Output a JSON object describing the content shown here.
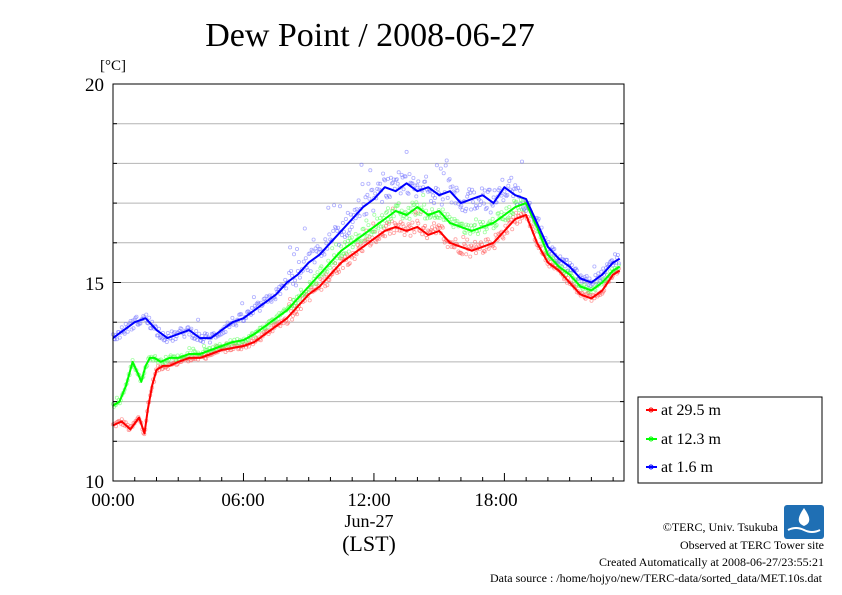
{
  "chart_data": {
    "type": "line",
    "title": "Dew Point / 2008-06-27",
    "ylabel_unit": "[°C]",
    "xlabel": "(LST)",
    "date_label": "Jun-27",
    "x_ticks": [
      "00:00",
      "06:00",
      "12:00",
      "18:00"
    ],
    "y_ticks": [
      "10",
      "15",
      "20"
    ],
    "ylim": [
      10,
      20
    ],
    "xlim_hours": [
      0,
      23.5
    ],
    "grid": "horizontal, every 1 °C",
    "legend_position": "right-bottom",
    "series": [
      {
        "name": "at 29.5 m",
        "color": "#ff0000",
        "x": [
          0,
          0.4,
          0.8,
          1.2,
          1.45,
          1.6,
          1.8,
          2.0,
          2.3,
          2.6,
          3.0,
          3.5,
          4.0,
          4.5,
          5.0,
          5.5,
          6.0,
          6.5,
          7.0,
          7.5,
          8.0,
          8.5,
          9.0,
          9.5,
          10.0,
          10.5,
          11.0,
          11.5,
          12.0,
          12.5,
          13.0,
          13.5,
          14.0,
          14.5,
          15.0,
          15.5,
          16.0,
          16.5,
          17.0,
          17.5,
          18.0,
          18.5,
          19.0,
          19.5,
          20.0,
          20.5,
          21.0,
          21.5,
          22.0,
          22.5,
          23.0,
          23.3
        ],
        "y": [
          11.4,
          11.5,
          11.3,
          11.6,
          11.2,
          11.8,
          12.4,
          12.8,
          12.9,
          12.9,
          13.0,
          13.1,
          13.1,
          13.2,
          13.3,
          13.35,
          13.4,
          13.5,
          13.7,
          13.9,
          14.1,
          14.4,
          14.7,
          14.9,
          15.2,
          15.5,
          15.7,
          15.9,
          16.1,
          16.3,
          16.4,
          16.3,
          16.4,
          16.2,
          16.3,
          16.0,
          15.9,
          15.8,
          15.9,
          16.0,
          16.3,
          16.6,
          16.7,
          16.0,
          15.5,
          15.3,
          15.0,
          14.7,
          14.6,
          14.8,
          15.2,
          15.3
        ]
      },
      {
        "name": "at 12.3 m",
        "color": "#00ff00",
        "x": [
          0,
          0.3,
          0.6,
          0.9,
          1.15,
          1.3,
          1.5,
          1.7,
          1.9,
          2.2,
          2.6,
          3.0,
          3.5,
          4.0,
          4.5,
          5.0,
          5.5,
          6.0,
          6.5,
          7.0,
          7.5,
          8.0,
          8.5,
          9.0,
          9.5,
          10.0,
          10.5,
          11.0,
          11.5,
          12.0,
          12.5,
          13.0,
          13.5,
          14.0,
          14.5,
          15.0,
          15.5,
          16.0,
          16.5,
          17.0,
          17.5,
          18.0,
          18.5,
          19.0,
          19.5,
          20.0,
          20.5,
          21.0,
          21.5,
          22.0,
          22.5,
          23.0,
          23.3
        ],
        "y": [
          11.9,
          12.0,
          12.4,
          13.0,
          12.7,
          12.5,
          12.9,
          13.1,
          13.1,
          13.0,
          13.1,
          13.1,
          13.2,
          13.2,
          13.3,
          13.4,
          13.5,
          13.55,
          13.7,
          13.9,
          14.1,
          14.3,
          14.6,
          14.9,
          15.2,
          15.5,
          15.8,
          16.0,
          16.2,
          16.4,
          16.6,
          16.8,
          16.7,
          16.9,
          16.7,
          16.8,
          16.5,
          16.4,
          16.3,
          16.4,
          16.5,
          16.7,
          16.9,
          17.0,
          16.4,
          15.7,
          15.4,
          15.2,
          14.9,
          14.8,
          15.0,
          15.3,
          15.4
        ]
      },
      {
        "name": "at 1.6 m",
        "color": "#0000ff",
        "x": [
          0,
          0.5,
          1.0,
          1.5,
          2.0,
          2.5,
          3.0,
          3.5,
          4.0,
          4.5,
          5.0,
          5.5,
          6.0,
          6.5,
          7.0,
          7.5,
          8.0,
          8.5,
          9.0,
          9.5,
          10.0,
          10.5,
          11.0,
          11.5,
          12.0,
          12.5,
          13.0,
          13.5,
          14.0,
          14.5,
          15.0,
          15.5,
          16.0,
          16.5,
          17.0,
          17.5,
          18.0,
          18.5,
          19.0,
          19.5,
          20.0,
          20.5,
          21.0,
          21.5,
          22.0,
          22.5,
          23.0,
          23.3
        ],
        "y": [
          13.6,
          13.8,
          14.0,
          14.1,
          13.8,
          13.6,
          13.7,
          13.8,
          13.6,
          13.6,
          13.8,
          14.0,
          14.1,
          14.3,
          14.5,
          14.7,
          15.0,
          15.2,
          15.5,
          15.7,
          16.0,
          16.3,
          16.6,
          16.9,
          17.1,
          17.4,
          17.3,
          17.5,
          17.3,
          17.4,
          17.2,
          17.3,
          17.0,
          17.1,
          17.2,
          17.0,
          17.4,
          17.2,
          17.1,
          16.5,
          15.9,
          15.6,
          15.4,
          15.1,
          15.0,
          15.2,
          15.5,
          15.6
        ]
      }
    ]
  },
  "footer": {
    "copyright": "©TERC, Univ. Tsukuba",
    "observed": "Observed at TERC Tower site",
    "created": "Created Automatically at 2008-06-27/23:55:21",
    "source": "Data source : /home/hojyo/new/TERC-data/sorted_data/MET.10s.dat"
  }
}
